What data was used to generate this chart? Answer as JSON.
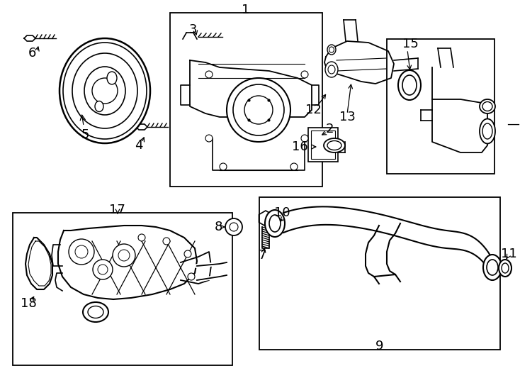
{
  "bg": "#ffffff",
  "fw": 7.34,
  "fh": 5.4,
  "dpi": 100,
  "lc": "#000000",
  "lw": 1.2
}
